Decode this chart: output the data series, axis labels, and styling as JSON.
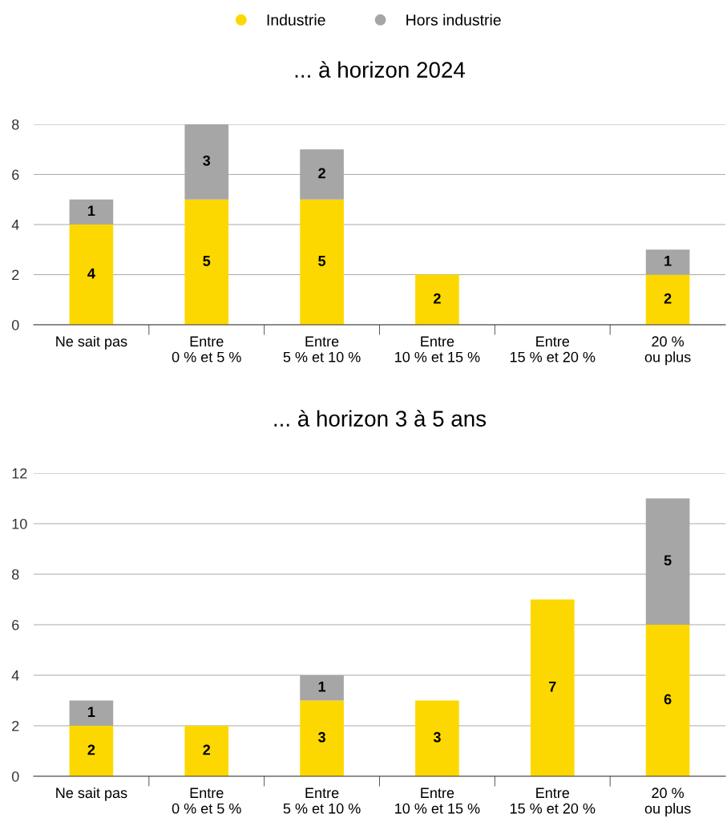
{
  "chart_data": [
    {
      "type": "bar",
      "stacked": true,
      "title": "... à horizon 2024",
      "categories": [
        "Ne sait pas",
        "Entre\n0 % et 5 %",
        "Entre\n5 % et 10 %",
        "Entre\n10 % et 15 %",
        "Entre\n15 % et 20 %",
        "20 %\nou plus"
      ],
      "series": [
        {
          "name": "Industrie",
          "color": "#fdd800",
          "values": [
            4,
            5,
            5,
            2,
            null,
            2
          ]
        },
        {
          "name": "Hors industrie",
          "color": "#a6a6a6",
          "values": [
            1,
            3,
            2,
            null,
            null,
            1
          ]
        }
      ],
      "ylim": [
        0,
        8
      ],
      "yticks": [
        0,
        2,
        4,
        6,
        8
      ],
      "grid": "y",
      "data_labels": true,
      "legend": "top"
    },
    {
      "type": "bar",
      "stacked": true,
      "title": "... à horizon 3 à 5 ans",
      "categories": [
        "Ne sait pas",
        "Entre\n0 % et 5 %",
        "Entre\n5 % et 10 %",
        "Entre\n10 % et 15 %",
        "Entre\n15 % et 20 %",
        "20 %\nou plus"
      ],
      "series": [
        {
          "color": "#fdd800",
          "values": [
            2,
            2,
            3,
            3,
            7,
            6
          ]
        },
        {
          "color": "#a6a6a6",
          "values": [
            1,
            null,
            1,
            null,
            null,
            5
          ]
        }
      ],
      "ylim": [
        0,
        12
      ],
      "yticks": [
        0,
        2,
        4,
        6,
        8,
        10,
        12
      ],
      "grid": "y",
      "data_labels": true
    }
  ]
}
